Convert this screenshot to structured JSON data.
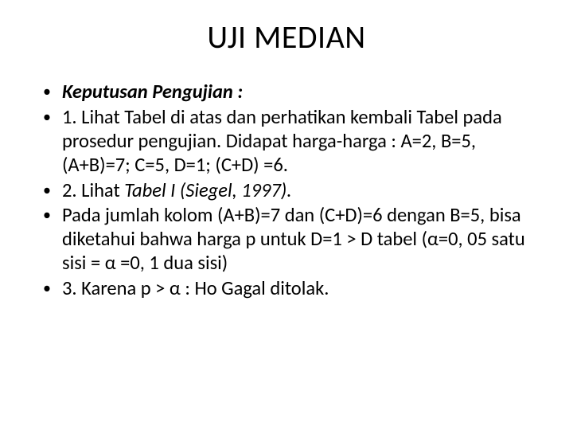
{
  "slide": {
    "title": "UJI MEDIAN",
    "title_fontsize": 40,
    "body_fontsize": 24.5,
    "text_color": "#000000",
    "background_color": "#ffffff",
    "bullets": [
      {
        "segments": [
          {
            "t": "Keputusan Pengujian :",
            "style": "bi"
          }
        ]
      },
      {
        "segments": [
          {
            "t": "1. Lihat Tabel di atas dan perhatikan kembali Tabel pada prosedur pengujian. Didapat harga-harga : A=2, B=5, (A+B)=7;  C=5, D=1; (C+D) =6.",
            "style": ""
          }
        ]
      },
      {
        "segments": [
          {
            "t": "2. Lihat ",
            "style": ""
          },
          {
            "t": "Tabel I (Siegel, 1997).",
            "style": "i"
          }
        ]
      },
      {
        "segments": [
          {
            "t": " Pada jumlah kolom (A+B)=7 dan (C+D)=6 dengan B=5, bisa diketahui bahwa harga p untuk D=1 > D tabel (α=0, 05 satu sisi = α =0, 1 dua sisi)",
            "style": ""
          }
        ]
      },
      {
        "segments": [
          {
            "t": "3. Karena p > α :  Ho Gagal ditolak.",
            "style": ""
          }
        ]
      }
    ]
  }
}
